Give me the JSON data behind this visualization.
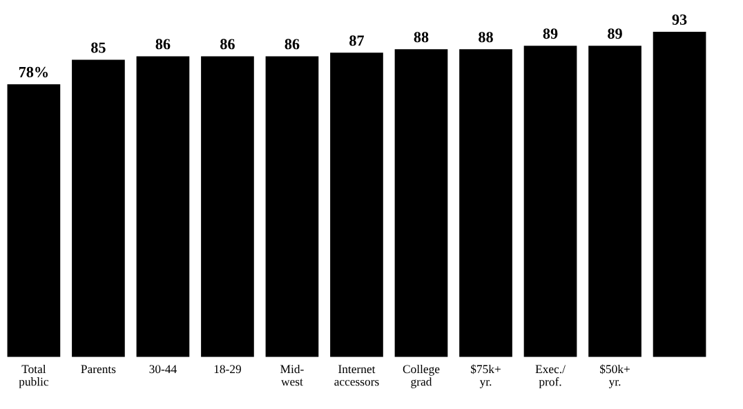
{
  "chart_data": {
    "type": "bar",
    "categories": [
      "Total\npublic",
      "Parents",
      "30-44",
      "18-29",
      "Mid-\nwest",
      "Internet\naccessors",
      "College\ngrad",
      "$75k+\nyr.",
      "Exec./\nprof.",
      "$50k+\nyr.",
      null
    ],
    "values": [
      78,
      85,
      86,
      86,
      86,
      87,
      88,
      88,
      89,
      89,
      93
    ],
    "value_labels": [
      "78%",
      "85",
      "86",
      "86",
      "86",
      "87",
      "88",
      "88",
      "89",
      "89",
      "93"
    ],
    "color": "#000000",
    "grid": false,
    "legend": false
  }
}
